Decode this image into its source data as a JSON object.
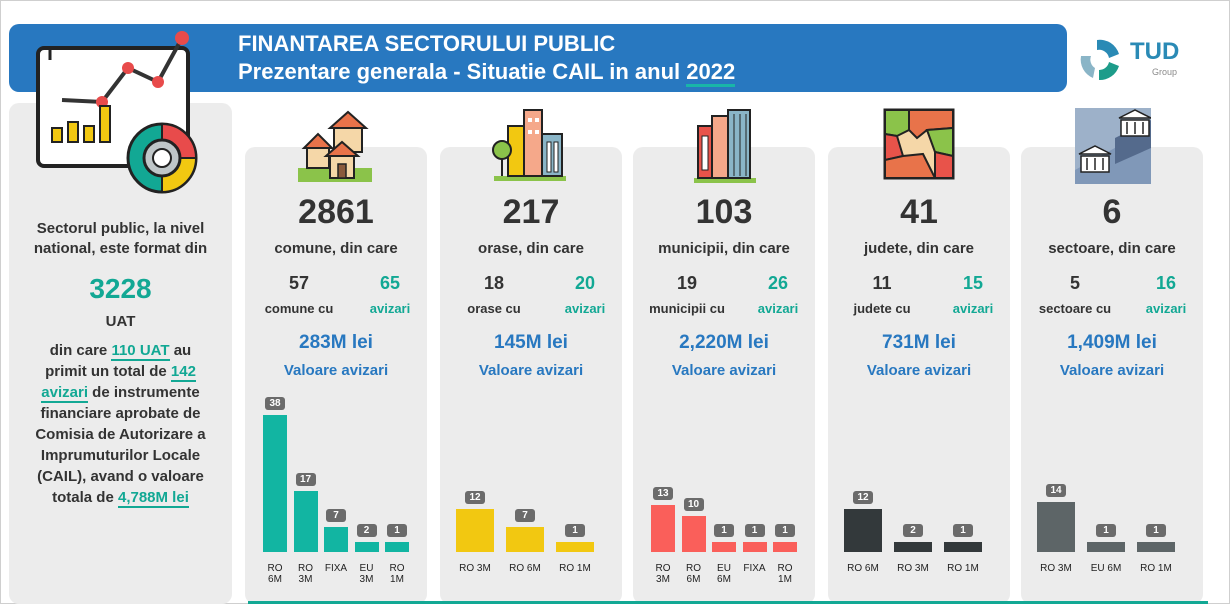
{
  "header": {
    "title_line1": "FINANTAREA SECTORULUI PUBLIC",
    "title_line2_prefix": "Prezentare generala - Situatie CAIL in anul ",
    "title_year": "2022",
    "logo_text": "TUD",
    "logo_sub": "Group"
  },
  "summary": {
    "intro_line1": "Sectorul public, la nivel",
    "intro_line2": "national, este format din",
    "total_uat": "3228",
    "uat_label": "UAT",
    "p1_a": "din care ",
    "p1_b": "110 UAT",
    "p1_c": " au",
    "p2_a": "primit un total de ",
    "p2_b": "142",
    "p3_a": "avizari",
    "p3_b": " de instrumente",
    "p4": "financiare aprobate de",
    "p5": "Comisia de Autorizare a",
    "p6": "Imprumuturilor Locale",
    "p7": "(CAIL), avand o valoare",
    "p8_a": "totala de ",
    "p8_b": "4,788M lei"
  },
  "colors": {
    "banner": "#2878c0",
    "accent": "#12a894",
    "card_bg": "#ececec"
  },
  "cards": [
    {
      "icon": "houses-icon",
      "count": "2861",
      "subtitle": "comune, din care",
      "left_num": "57",
      "left_label": "comune cu",
      "right_num": "65",
      "right_label": "avizari",
      "money": "283M lei",
      "value_label": "Valoare avizari"
    },
    {
      "icon": "city-icon",
      "count": "217",
      "subtitle": "orase, din care",
      "left_num": "18",
      "left_label": "orase cu",
      "right_num": "20",
      "right_label": "avizari",
      "money": "145M lei",
      "value_label": "Valoare avizari"
    },
    {
      "icon": "skyscrapers-icon",
      "count": "103",
      "subtitle": "municipii, din care",
      "left_num": "19",
      "left_label": "municipii cu",
      "right_num": "26",
      "right_label": "avizari",
      "money": "2,220M lei",
      "value_label": "Valoare avizari"
    },
    {
      "icon": "map-icon",
      "count": "41",
      "subtitle": "judete, din care",
      "left_num": "11",
      "left_label": "judete cu",
      "right_num": "15",
      "right_label": "avizari",
      "money": "731M lei",
      "value_label": "Valoare avizari"
    },
    {
      "icon": "government-building-icon",
      "count": "6",
      "subtitle": "sectoare, din care",
      "left_num": "5",
      "left_label": "sectoare cu",
      "right_num": "16",
      "right_label": "avizari",
      "money": "1,409M lei",
      "value_label": "Valoare avizari"
    }
  ],
  "chart_data": [
    {
      "type": "bar",
      "color": "#12b5a2",
      "categories": [
        "RO 6M",
        "RO 3M",
        "FIXA",
        "EU 3M",
        "RO 1M"
      ],
      "values": [
        38,
        17,
        7,
        2,
        1
      ]
    },
    {
      "type": "bar",
      "color": "#f2c811",
      "categories": [
        "RO 3M",
        "RO 6M",
        "RO 1M"
      ],
      "values": [
        12,
        7,
        1
      ]
    },
    {
      "type": "bar",
      "color": "#fa5f5a",
      "categories": [
        "RO 3M",
        "RO 6M",
        "EU 6M",
        "FIXA",
        "RO 1M"
      ],
      "values": [
        13,
        10,
        1,
        1,
        1
      ]
    },
    {
      "type": "bar",
      "color": "#33393b",
      "categories": [
        "RO 6M",
        "RO 3M",
        "RO 1M"
      ],
      "values": [
        12,
        2,
        1
      ]
    },
    {
      "type": "bar",
      "color": "#5d6567",
      "categories": [
        "RO 3M",
        "EU 6M",
        "RO 1M"
      ],
      "values": [
        14,
        1,
        1
      ]
    }
  ]
}
